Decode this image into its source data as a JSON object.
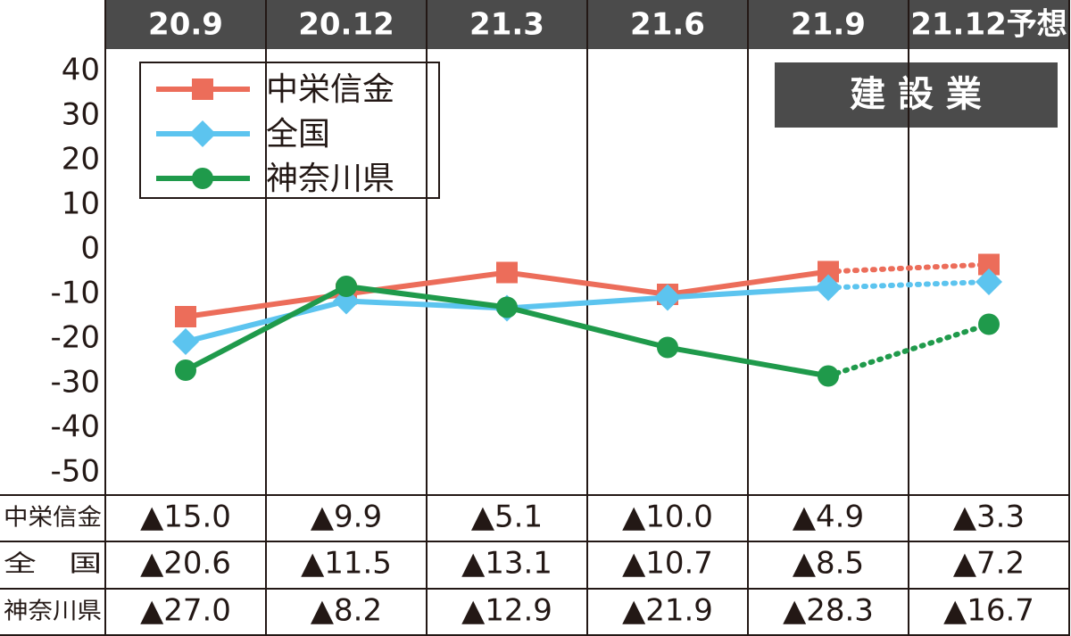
{
  "chart_data": {
    "type": "line",
    "categories": [
      "20.9",
      "20.12",
      "21.3",
      "21.6",
      "21.9",
      "21.12予想"
    ],
    "series": [
      {
        "name": "中栄信金",
        "color": "#ec6d5a",
        "marker": "square",
        "values": [
          -15.0,
          -9.9,
          -5.1,
          -10.0,
          -4.9,
          -3.3
        ],
        "value_labels": [
          "▲15.0",
          "▲9.9",
          "▲5.1",
          "▲10.0",
          "▲4.9",
          "▲3.3"
        ]
      },
      {
        "name": "全国",
        "color": "#5cc4ef",
        "marker": "diamond",
        "values": [
          -20.6,
          -11.5,
          -13.1,
          -10.7,
          -8.5,
          -7.2
        ],
        "value_labels": [
          "▲20.6",
          "▲11.5",
          "▲13.1",
          "▲10.7",
          "▲8.5",
          "▲7.2"
        ]
      },
      {
        "name": "神奈川県",
        "color": "#1f9a4b",
        "marker": "circle",
        "values": [
          -27.0,
          -8.2,
          -12.9,
          -21.9,
          -28.3,
          -16.7
        ],
        "value_labels": [
          "▲27.0",
          "▲8.2",
          "▲12.9",
          "▲21.9",
          "▲28.3",
          "▲16.7"
        ]
      }
    ],
    "table_rows": [
      "中栄信金",
      "全　国",
      "神奈川県"
    ],
    "badge": "建 設 業",
    "ylim": [
      -55,
      45
    ],
    "yticks": [
      40,
      30,
      20,
      10,
      0,
      -10,
      -20,
      -30,
      -40,
      -50
    ],
    "grid": false,
    "dotted_last_segment": true
  }
}
